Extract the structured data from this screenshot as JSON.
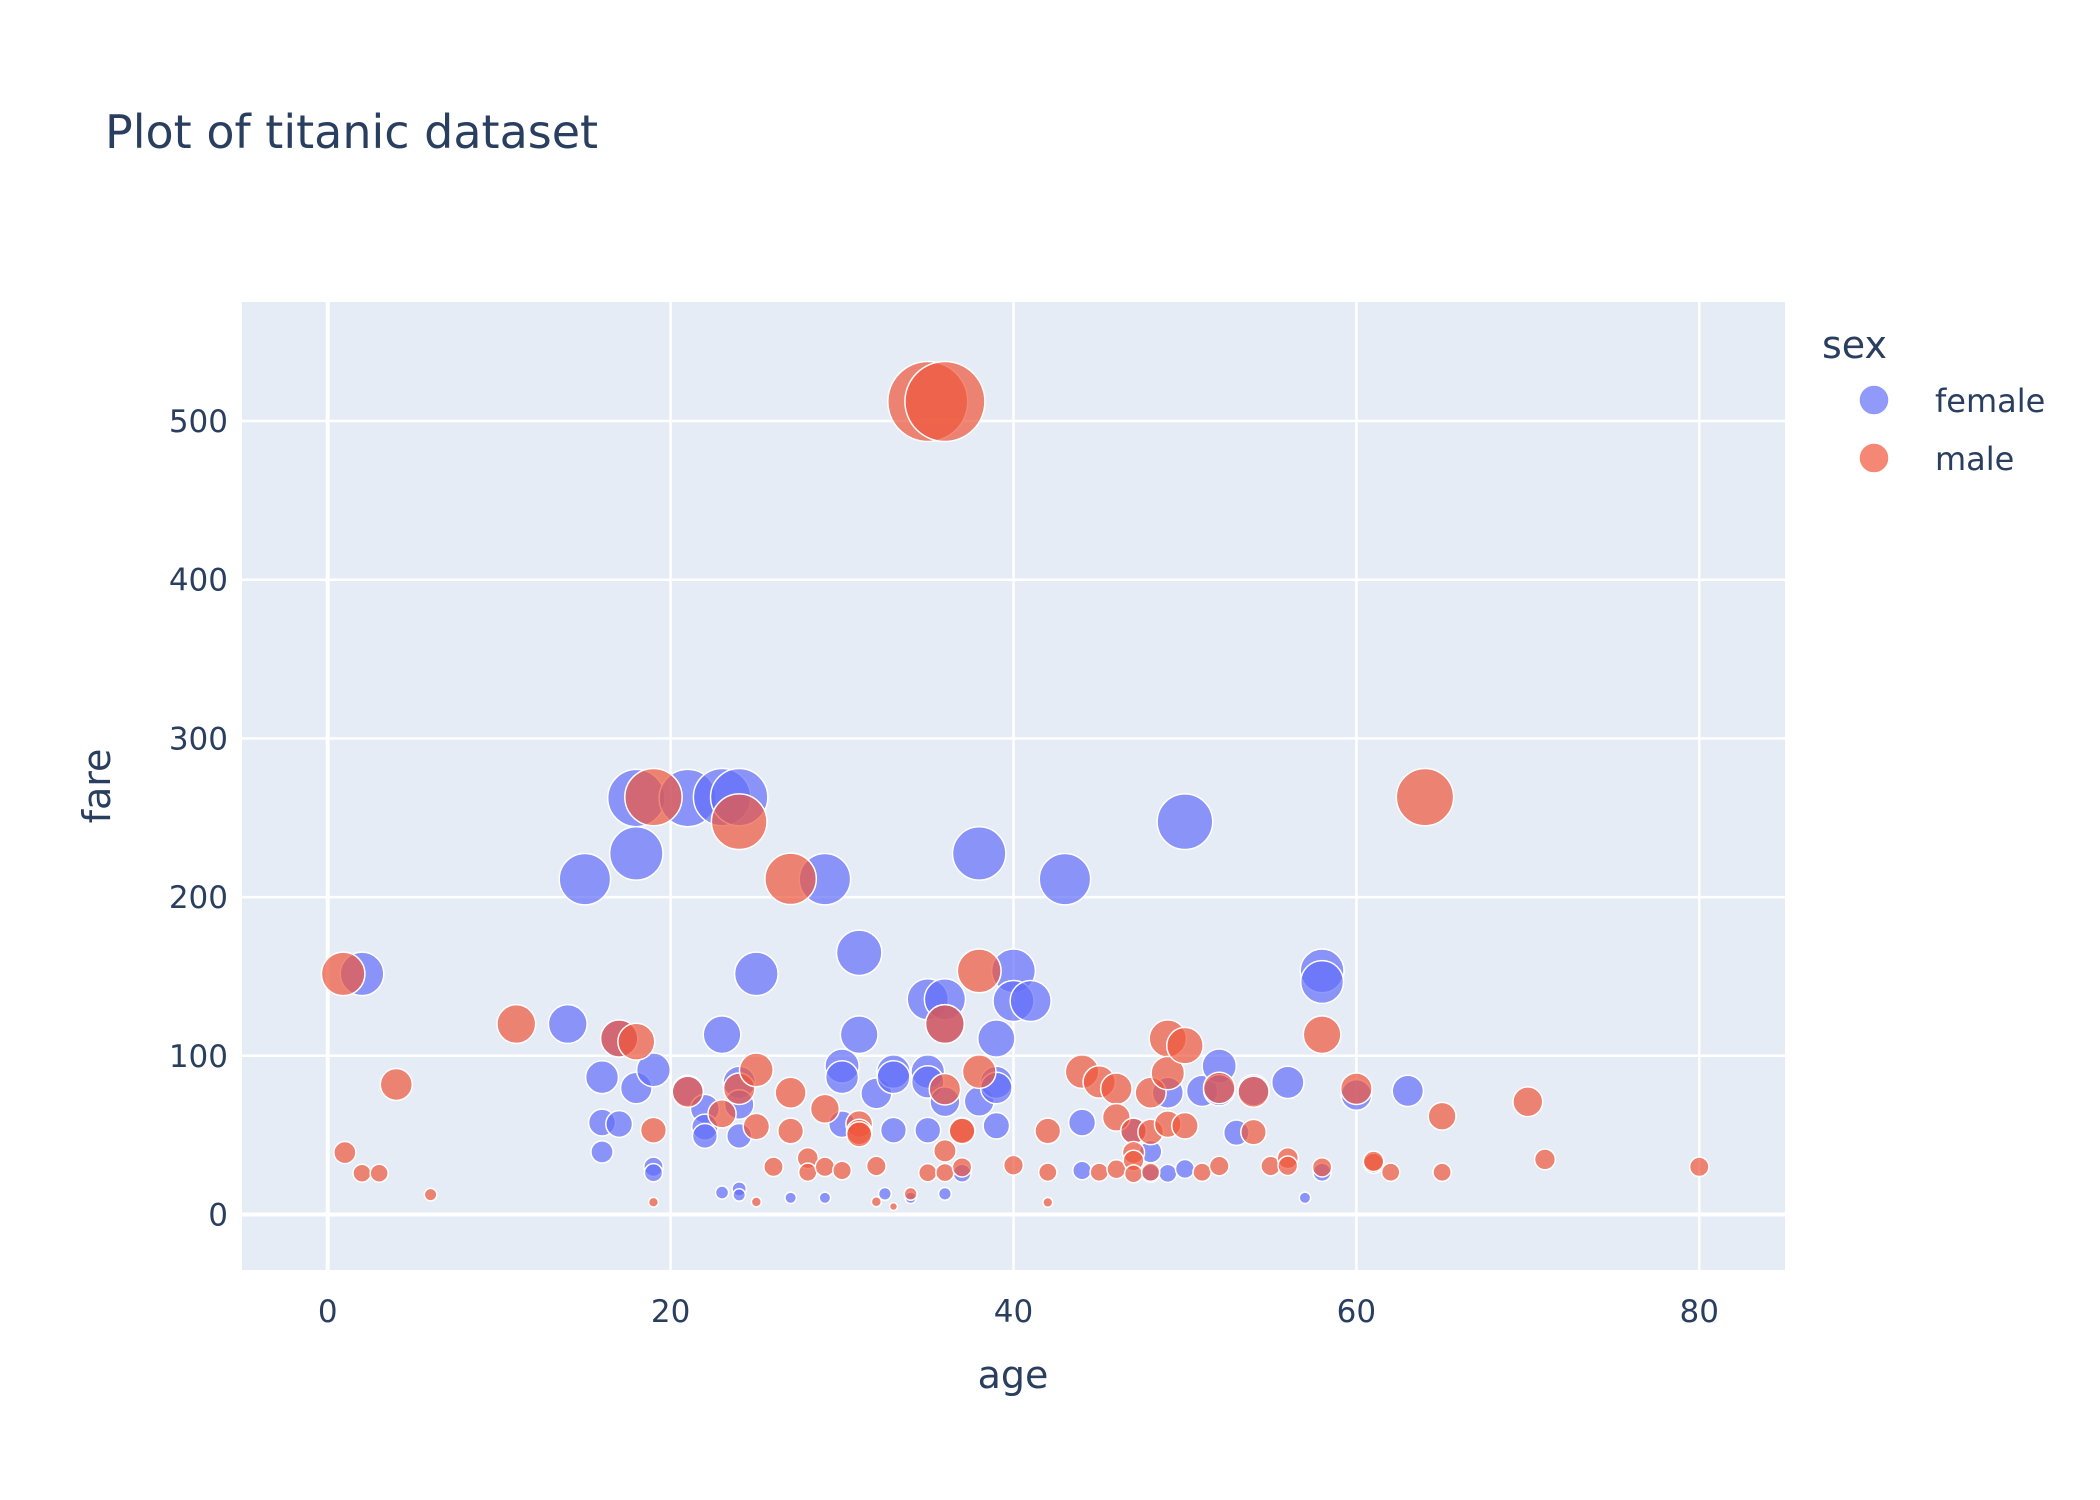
{
  "chart_data": {
    "type": "scatter",
    "title": "Plot of titanic dataset",
    "xlabel": "age",
    "ylabel": "fare",
    "xlim": [
      -5,
      85
    ],
    "ylim": [
      -35,
      575
    ],
    "x_ticks": [
      0,
      20,
      40,
      60,
      80
    ],
    "y_ticks": [
      0,
      100,
      200,
      300,
      400,
      500
    ],
    "grid": true,
    "legend_title": "sex",
    "legend_position": "top-right",
    "size_encoding": "fare",
    "series": [
      {
        "name": "female",
        "color": "#636efa",
        "points": [
          [
            2,
            151.6
          ],
          [
            15,
            211.3
          ],
          [
            14,
            120
          ],
          [
            16,
            86.5
          ],
          [
            16,
            57.9
          ],
          [
            16,
            39.4
          ],
          [
            17,
            110.9
          ],
          [
            17,
            57
          ],
          [
            18,
            262.4
          ],
          [
            18,
            227.5
          ],
          [
            18,
            79.7
          ],
          [
            19,
            91.1
          ],
          [
            19,
            30
          ],
          [
            19,
            26.3
          ],
          [
            21,
            262.4
          ],
          [
            21,
            77.9
          ],
          [
            22,
            66.6
          ],
          [
            22,
            55
          ],
          [
            22,
            49.5
          ],
          [
            23,
            263
          ],
          [
            23,
            113.3
          ],
          [
            23,
            13.8
          ],
          [
            24,
            263
          ],
          [
            24,
            83.2
          ],
          [
            24,
            69.3
          ],
          [
            24,
            49.5
          ],
          [
            24,
            16.1
          ],
          [
            24,
            12.3
          ],
          [
            25,
            151.6
          ],
          [
            27,
            10.5
          ],
          [
            29,
            211.3
          ],
          [
            29,
            10.5
          ],
          [
            30,
            93.5
          ],
          [
            30,
            86.5
          ],
          [
            30,
            56.9
          ],
          [
            31,
            164.9
          ],
          [
            31,
            113.3
          ],
          [
            32,
            76.3
          ],
          [
            32.5,
            13
          ],
          [
            33,
            90
          ],
          [
            33,
            86.5
          ],
          [
            33,
            53.1
          ],
          [
            34,
            10.5
          ],
          [
            35,
            135.6
          ],
          [
            35,
            90
          ],
          [
            35,
            83.5
          ],
          [
            35,
            53.1
          ],
          [
            36,
            135.6
          ],
          [
            36,
            120
          ],
          [
            36,
            71
          ],
          [
            36,
            13
          ],
          [
            37,
            26
          ],
          [
            38,
            227.5
          ],
          [
            38,
            71.3
          ],
          [
            39,
            110.9
          ],
          [
            39,
            83.2
          ],
          [
            39,
            79.7
          ],
          [
            39,
            55.9
          ],
          [
            40,
            153.5
          ],
          [
            40,
            134.5
          ],
          [
            41,
            134.5
          ],
          [
            43,
            211.3
          ],
          [
            44,
            57.9
          ],
          [
            44,
            27.7
          ],
          [
            47,
            52.6
          ],
          [
            48,
            39.6
          ],
          [
            48,
            25.9
          ],
          [
            49,
            76.7
          ],
          [
            49,
            25.9
          ],
          [
            50,
            247.5
          ],
          [
            50,
            28.7
          ],
          [
            51,
            77.9
          ],
          [
            52,
            93.5
          ],
          [
            52,
            78.3
          ],
          [
            53,
            51.5
          ],
          [
            54,
            78.3
          ],
          [
            56,
            83.2
          ],
          [
            57,
            10.5
          ],
          [
            58,
            153.5
          ],
          [
            58,
            146.5
          ],
          [
            58,
            26.6
          ],
          [
            60,
            75.3
          ],
          [
            63,
            77.9
          ]
        ]
      },
      {
        "name": "male",
        "color": "#ef553b",
        "points": [
          [
            0.9,
            151.6
          ],
          [
            1,
            39
          ],
          [
            2,
            26
          ],
          [
            3,
            26
          ],
          [
            4,
            81.9
          ],
          [
            6,
            12.5
          ],
          [
            11,
            120
          ],
          [
            17,
            110.9
          ],
          [
            18,
            108.9
          ],
          [
            19,
            263
          ],
          [
            19,
            53.1
          ],
          [
            19,
            7.7
          ],
          [
            21,
            77.3
          ],
          [
            23,
            63.4
          ],
          [
            24,
            247.5
          ],
          [
            24,
            79.2
          ],
          [
            25,
            91.1
          ],
          [
            25,
            55.4
          ],
          [
            25,
            7.9
          ],
          [
            26,
            30
          ],
          [
            27,
            211.5
          ],
          [
            27,
            76.7
          ],
          [
            27,
            52.6
          ],
          [
            28,
            35.5
          ],
          [
            28,
            26.6
          ],
          [
            29,
            66.6
          ],
          [
            29,
            30
          ],
          [
            30,
            27.7
          ],
          [
            31,
            57
          ],
          [
            31,
            52
          ],
          [
            31,
            50.5
          ],
          [
            32,
            30.5
          ],
          [
            32,
            8
          ],
          [
            33,
            5
          ],
          [
            34,
            13
          ],
          [
            35,
            512.3
          ],
          [
            35,
            26.3
          ],
          [
            36,
            512.3
          ],
          [
            36,
            120
          ],
          [
            36,
            78.9
          ],
          [
            36,
            40.1
          ],
          [
            36,
            26.4
          ],
          [
            37,
            53.1
          ],
          [
            37,
            52.6
          ],
          [
            37,
            29.7
          ],
          [
            38,
            153.5
          ],
          [
            38,
            90
          ],
          [
            40,
            31
          ],
          [
            42,
            52.6
          ],
          [
            42,
            26.6
          ],
          [
            42,
            7.6
          ],
          [
            44,
            90
          ],
          [
            45,
            83.5
          ],
          [
            45,
            26.6
          ],
          [
            46,
            79.2
          ],
          [
            46,
            61.2
          ],
          [
            46,
            28.5
          ],
          [
            47,
            52.6
          ],
          [
            47,
            39
          ],
          [
            47,
            34
          ],
          [
            47,
            25.6
          ],
          [
            48,
            76.7
          ],
          [
            48,
            52
          ],
          [
            48,
            26.6
          ],
          [
            49,
            110.9
          ],
          [
            49,
            89.1
          ],
          [
            49,
            56.9
          ],
          [
            50,
            106.4
          ],
          [
            50,
            55.9
          ],
          [
            51,
            26.6
          ],
          [
            52,
            79.7
          ],
          [
            52,
            30.5
          ],
          [
            54,
            77.3
          ],
          [
            54,
            51.9
          ],
          [
            55,
            30.5
          ],
          [
            56,
            35.5
          ],
          [
            56,
            30.7
          ],
          [
            58,
            113.3
          ],
          [
            58,
            29.7
          ],
          [
            60,
            79.2
          ],
          [
            61,
            32.3
          ],
          [
            61,
            33.5
          ],
          [
            62,
            26.6
          ],
          [
            64,
            263
          ],
          [
            65,
            61.9
          ],
          [
            65,
            26.6
          ],
          [
            70,
            71
          ],
          [
            71,
            34.7
          ],
          [
            80,
            30
          ]
        ]
      }
    ]
  }
}
